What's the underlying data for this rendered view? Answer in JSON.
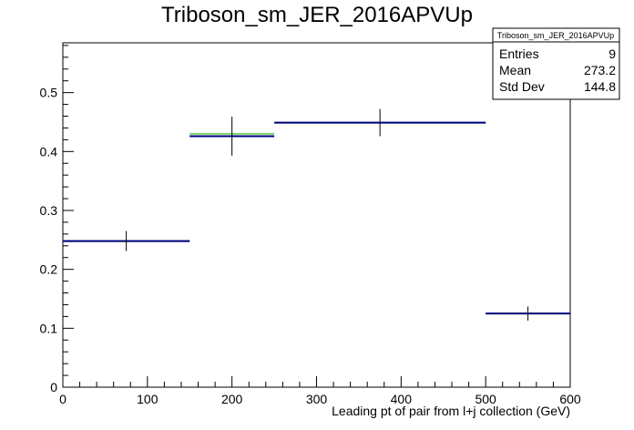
{
  "chart_data": {
    "type": "histogram",
    "title": "Triboson_sm_JER_2016APVUp",
    "xlabel": "Leading pt of pair from l+j collection (GeV)",
    "ylabel": "",
    "xlim": [
      0,
      600
    ],
    "ylim": [
      0,
      0.5845
    ],
    "x_ticks": [
      0,
      100,
      200,
      300,
      400,
      500,
      600
    ],
    "y_ticks": [
      0,
      0.1,
      0.2,
      0.3,
      0.4,
      0.5
    ],
    "x_tick_labels": [
      "0",
      "100",
      "200",
      "300",
      "400",
      "500",
      "600"
    ],
    "y_tick_labels": [
      "0",
      "0.1",
      "0.2",
      "0.3",
      "0.4",
      "0.5"
    ],
    "grid": false,
    "series": [
      {
        "color": "#7fd36b",
        "bins": [
          {
            "x0": 0,
            "x1": 150,
            "value": 0.248
          },
          {
            "x0": 150,
            "x1": 250,
            "value": 0.43
          },
          {
            "x0": 250,
            "x1": 500,
            "value": 0.449
          },
          {
            "x0": 500,
            "x1": 600,
            "value": 0.125
          }
        ]
      },
      {
        "color": "#000080",
        "bins": [
          {
            "x0": 0,
            "x1": 150,
            "value": 0.248,
            "err": 0.017
          },
          {
            "x0": 150,
            "x1": 250,
            "value": 0.426,
            "err": 0.033
          },
          {
            "x0": 250,
            "x1": 500,
            "value": 0.449,
            "err": 0.023
          },
          {
            "x0": 500,
            "x1": 600,
            "value": 0.125,
            "err": 0.012
          }
        ]
      }
    ],
    "stats_box": {
      "title": "Triboson_sm_JER_2016APVUp",
      "rows": [
        {
          "label": "Entries",
          "value": "9"
        },
        {
          "label": "Mean",
          "value": "273.2"
        },
        {
          "label": "Std Dev",
          "value": "144.8"
        }
      ],
      "placement": "top-right"
    }
  }
}
